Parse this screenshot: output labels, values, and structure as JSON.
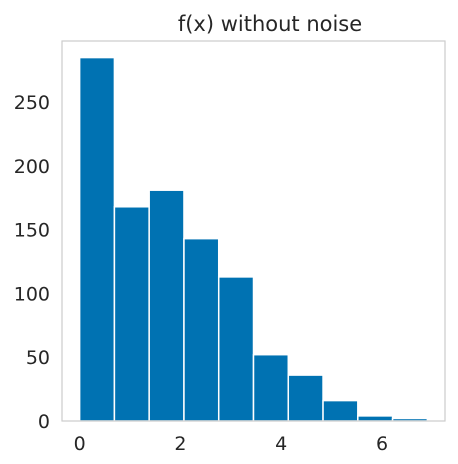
{
  "chart_data": {
    "type": "bar",
    "title": "f(x) without noise",
    "xlabel": "",
    "ylabel": "",
    "bins": [
      {
        "x0": 0.0,
        "x1": 0.69,
        "count": 285
      },
      {
        "x0": 0.69,
        "x1": 1.38,
        "count": 168
      },
      {
        "x0": 1.38,
        "x1": 2.07,
        "count": 181
      },
      {
        "x0": 2.07,
        "x1": 2.76,
        "count": 143
      },
      {
        "x0": 2.76,
        "x1": 3.45,
        "count": 113
      },
      {
        "x0": 3.45,
        "x1": 4.14,
        "count": 52
      },
      {
        "x0": 4.14,
        "x1": 4.83,
        "count": 36
      },
      {
        "x0": 4.83,
        "x1": 5.52,
        "count": 16
      },
      {
        "x0": 5.52,
        "x1": 6.21,
        "count": 4
      },
      {
        "x0": 6.21,
        "x1": 6.9,
        "count": 2
      }
    ],
    "xlim": [
      -0.35,
      7.25
    ],
    "ylim": [
      0,
      298
    ],
    "xticks": [
      0,
      2,
      4,
      6
    ],
    "yticks": [
      0,
      50,
      100,
      150,
      200,
      250
    ],
    "grid": false,
    "colors": {
      "bar": "#0072b2",
      "frame": "#cccccc",
      "text": "#262626"
    }
  }
}
